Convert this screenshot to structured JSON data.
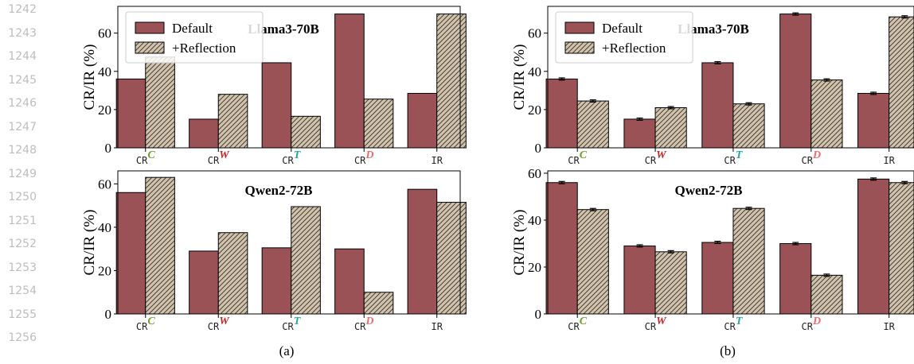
{
  "line_numbers": [
    "1242",
    "1243",
    "1244",
    "1245",
    "1246",
    "1247",
    "1248",
    "1249",
    "1250",
    "1251",
    "1252",
    "1253",
    "1254",
    "1255",
    "1256"
  ],
  "legend": {
    "default_label": "Default",
    "reflection_label": "+Reflection"
  },
  "colors": {
    "default_fill": "#9a5257",
    "reflection_fill": "#d2c2aa",
    "sup_C": "#6b9f2e",
    "sup_W": "#c62828",
    "sup_T": "#26a69a",
    "sup_D": "#ef6c6c"
  },
  "captions": {
    "a": "(a)",
    "b": "(b)"
  },
  "chart_data": [
    {
      "type": "bar",
      "panel": "(a)",
      "title": "Llama3-70B",
      "ylabel": "CR/IR (%)",
      "categories": [
        {
          "base": "CR",
          "sup": "C"
        },
        {
          "base": "CR",
          "sup": "W"
        },
        {
          "base": "CR",
          "sup": "T"
        },
        {
          "base": "CR",
          "sup": "D"
        },
        {
          "base": "IR",
          "sup": ""
        }
      ],
      "ylim": [
        0,
        74
      ],
      "yticks": [
        0,
        20,
        40,
        60
      ],
      "error_bars": false,
      "legend": true,
      "series": [
        {
          "name": "Default",
          "values": [
            36,
            15,
            44.5,
            70,
            28.5
          ]
        },
        {
          "name": "+Reflection",
          "values": [
            47.5,
            28,
            16.5,
            25.5,
            70
          ]
        }
      ]
    },
    {
      "type": "bar",
      "panel": "(a)",
      "title": "Qwen2-72B",
      "ylabel": "CR/IR (%)",
      "categories": [
        {
          "base": "CR",
          "sup": "C"
        },
        {
          "base": "CR",
          "sup": "W"
        },
        {
          "base": "CR",
          "sup": "T"
        },
        {
          "base": "CR",
          "sup": "D"
        },
        {
          "base": "IR",
          "sup": ""
        }
      ],
      "ylim": [
        0,
        66
      ],
      "yticks": [
        0,
        20,
        40,
        60
      ],
      "error_bars": false,
      "legend": false,
      "series": [
        {
          "name": "Default",
          "values": [
            56,
            29,
            30.5,
            30,
            57.5
          ]
        },
        {
          "name": "+Reflection",
          "values": [
            63,
            37.5,
            49.5,
            10,
            51.5
          ]
        }
      ]
    },
    {
      "type": "bar",
      "panel": "(b)",
      "title": "Llama3-70B",
      "ylabel": "CR/IR (%)",
      "categories": [
        {
          "base": "CR",
          "sup": "C"
        },
        {
          "base": "CR",
          "sup": "W"
        },
        {
          "base": "CR",
          "sup": "T"
        },
        {
          "base": "CR",
          "sup": "D"
        },
        {
          "base": "IR",
          "sup": ""
        }
      ],
      "ylim": [
        0,
        74
      ],
      "yticks": [
        0,
        20,
        40,
        60
      ],
      "error_bars": true,
      "legend": true,
      "series": [
        {
          "name": "Default",
          "values": [
            36,
            15,
            44.5,
            70,
            28.5
          ]
        },
        {
          "name": "+Reflection",
          "values": [
            24.5,
            21,
            23,
            35.5,
            68.5
          ]
        }
      ]
    },
    {
      "type": "bar",
      "panel": "(b)",
      "title": "Qwen2-72B",
      "ylabel": "CR/IR (%)",
      "categories": [
        {
          "base": "CR",
          "sup": "C"
        },
        {
          "base": "CR",
          "sup": "W"
        },
        {
          "base": "CR",
          "sup": "T"
        },
        {
          "base": "CR",
          "sup": "D"
        },
        {
          "base": "IR",
          "sup": ""
        }
      ],
      "ylim": [
        0,
        61
      ],
      "yticks": [
        0,
        20,
        40,
        60
      ],
      "error_bars": true,
      "legend": false,
      "series": [
        {
          "name": "Default",
          "values": [
            56,
            29,
            30.5,
            30,
            57.5
          ]
        },
        {
          "name": "+Reflection",
          "values": [
            44.5,
            26.5,
            45,
            16.5,
            56
          ]
        }
      ]
    }
  ]
}
